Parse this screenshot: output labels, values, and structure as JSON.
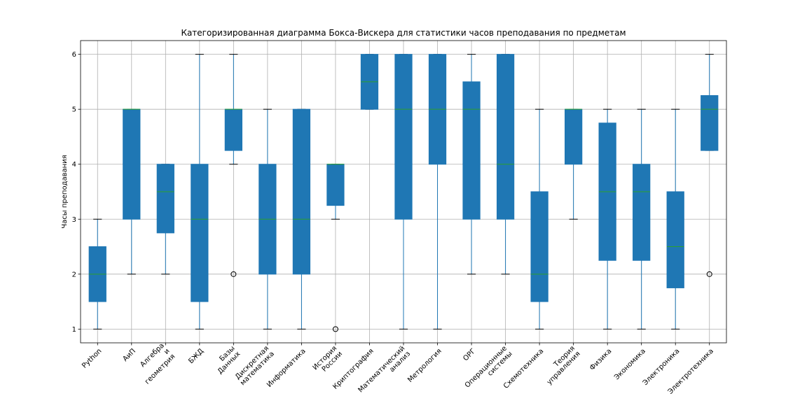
{
  "chart_data": {
    "type": "box",
    "title": "Категоризированная диаграмма Бокса-Вискера для статистики часов преподавания по предметам",
    "xlabel": "",
    "ylabel": "Часы преподавания",
    "ylim": [
      0.75,
      6.25
    ],
    "yticks": [
      1,
      2,
      3,
      4,
      5,
      6
    ],
    "grid": true,
    "box_color": "#1f77b4",
    "median_color": "#2ca02c",
    "categories": [
      {
        "label": "Python",
        "lines": [
          "Python"
        ],
        "wlo": 1,
        "q1": 1.5,
        "med": 2,
        "q3": 2.5,
        "whi": 3,
        "outliers": []
      },
      {
        "label": "АиП",
        "lines": [
          "АиП"
        ],
        "wlo": 2,
        "q1": 3,
        "med": 5,
        "q3": 5,
        "whi": 5,
        "outliers": []
      },
      {
        "label": "Алгебра и геометрия",
        "lines": [
          "Алгебра",
          "и",
          "геометрия"
        ],
        "wlo": 2,
        "q1": 2.75,
        "med": 3.5,
        "q3": 4,
        "whi": 4,
        "outliers": []
      },
      {
        "label": "БЖД",
        "lines": [
          "БЖД"
        ],
        "wlo": 1,
        "q1": 1.5,
        "med": 3,
        "q3": 4,
        "whi": 6,
        "outliers": []
      },
      {
        "label": "Базы Данных",
        "lines": [
          "Базы",
          "Данных"
        ],
        "wlo": 4,
        "q1": 4.25,
        "med": 5,
        "q3": 5,
        "whi": 6,
        "outliers": [
          2
        ]
      },
      {
        "label": "Дискретная математика",
        "lines": [
          "Дискретная",
          "математика"
        ],
        "wlo": 1,
        "q1": 2,
        "med": 3,
        "q3": 4,
        "whi": 5,
        "outliers": []
      },
      {
        "label": "Информатика",
        "lines": [
          "Информатика"
        ],
        "wlo": 1,
        "q1": 2,
        "med": 3,
        "q3": 5,
        "whi": 5,
        "outliers": []
      },
      {
        "label": "История России",
        "lines": [
          "История",
          "России"
        ],
        "wlo": 3,
        "q1": 3.25,
        "med": 4,
        "q3": 4,
        "whi": 4,
        "outliers": [
          1
        ]
      },
      {
        "label": "Криптография",
        "lines": [
          "Криптография"
        ],
        "wlo": 5,
        "q1": 5,
        "med": 5.5,
        "q3": 6,
        "whi": 6,
        "outliers": []
      },
      {
        "label": "Математический анализ",
        "lines": [
          "Математический",
          "анализ"
        ],
        "wlo": 1,
        "q1": 3,
        "med": 5,
        "q3": 6,
        "whi": 6,
        "outliers": []
      },
      {
        "label": "Метрология",
        "lines": [
          "Метрология"
        ],
        "wlo": 1,
        "q1": 4,
        "med": 5,
        "q3": 6,
        "whi": 6,
        "outliers": []
      },
      {
        "label": "ОРГ",
        "lines": [
          "ОРГ"
        ],
        "wlo": 2,
        "q1": 3,
        "med": 5,
        "q3": 5.5,
        "whi": 6,
        "outliers": []
      },
      {
        "label": "Операционные системы",
        "lines": [
          "Операционные",
          "системы"
        ],
        "wlo": 2,
        "q1": 3,
        "med": 4,
        "q3": 6,
        "whi": 6,
        "outliers": []
      },
      {
        "label": "Схемотехника",
        "lines": [
          "Схемотехника"
        ],
        "wlo": 1,
        "q1": 1.5,
        "med": 2,
        "q3": 3.5,
        "whi": 5,
        "outliers": []
      },
      {
        "label": "Теория управления",
        "lines": [
          "Теория",
          "управления"
        ],
        "wlo": 3,
        "q1": 4,
        "med": 5,
        "q3": 5,
        "whi": 5,
        "outliers": []
      },
      {
        "label": "Физика",
        "lines": [
          "Физика"
        ],
        "wlo": 1,
        "q1": 2.25,
        "med": 3.5,
        "q3": 4.75,
        "whi": 5,
        "outliers": []
      },
      {
        "label": "Экономика",
        "lines": [
          "Экономика"
        ],
        "wlo": 1,
        "q1": 2.25,
        "med": 3.5,
        "q3": 4,
        "whi": 5,
        "outliers": []
      },
      {
        "label": "Электроника",
        "lines": [
          "Электроника"
        ],
        "wlo": 1,
        "q1": 1.75,
        "med": 2.5,
        "q3": 3.5,
        "whi": 5,
        "outliers": []
      },
      {
        "label": "Электротехника",
        "lines": [
          "Электротехника"
        ],
        "wlo": 4.25,
        "q1": 4.25,
        "med": 5,
        "q3": 5.25,
        "whi": 6,
        "outliers": [
          2
        ]
      }
    ]
  }
}
